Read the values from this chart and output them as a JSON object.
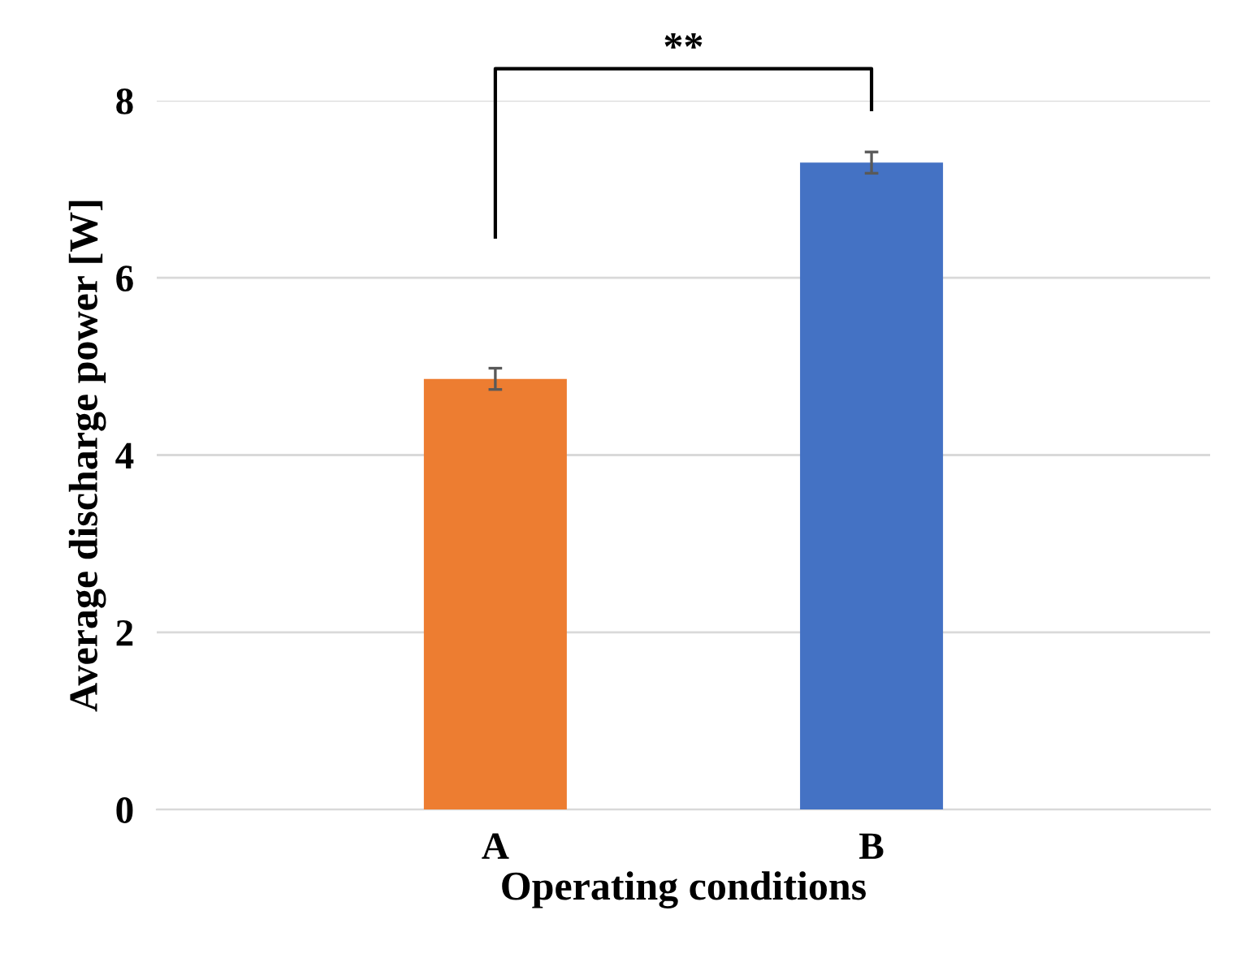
{
  "chart_data": {
    "type": "bar",
    "categories": [
      "A",
      "B"
    ],
    "values": [
      4.86,
      7.3
    ],
    "errors": [
      0.12,
      0.12
    ],
    "colors": [
      "#ed7d31",
      "#4472c4"
    ],
    "xlabel": "Operating conditions",
    "ylabel": "Average discharge power [W]",
    "ylim": [
      0,
      8
    ],
    "yticks": [
      0,
      2,
      4,
      6,
      8
    ],
    "grid": "y",
    "annotations": [
      "**"
    ]
  }
}
